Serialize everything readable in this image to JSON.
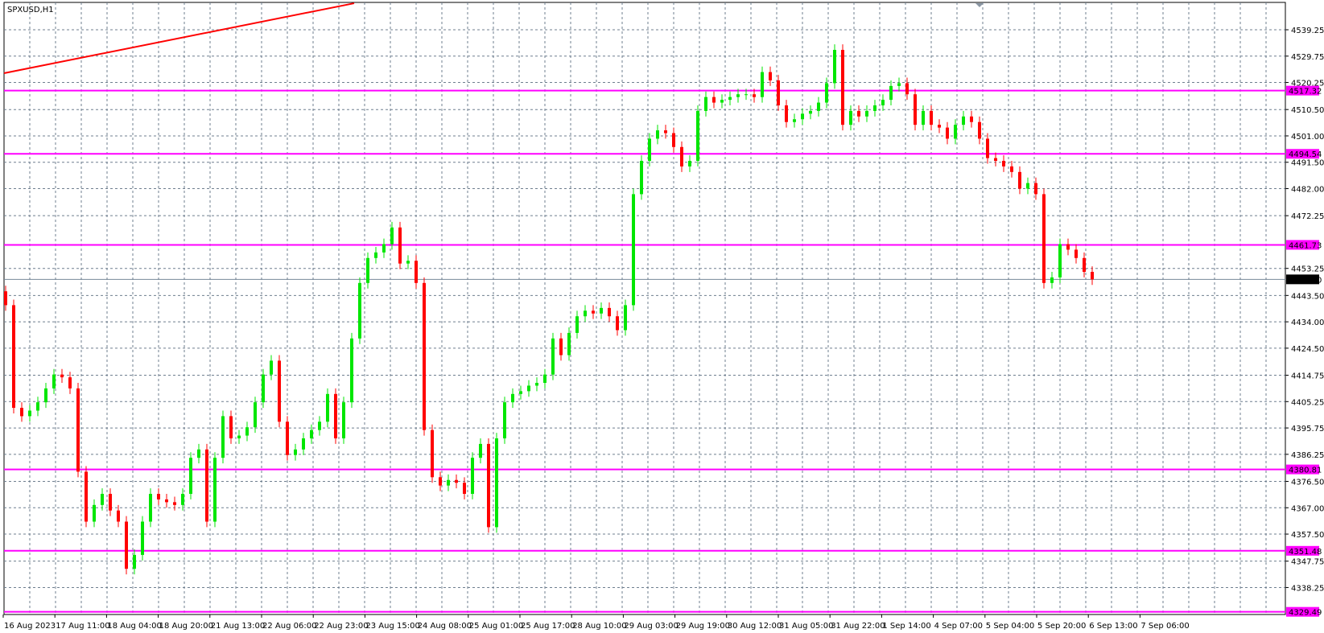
{
  "chart_title": "SPXUSD,H1",
  "chart_data": {
    "type": "candlestick",
    "symbol": "SPXUSD",
    "timeframe": "H1",
    "grid": true,
    "colors": {
      "bull": "#00e600",
      "bear": "#ff0000",
      "level_line": "#ff00ff",
      "trendline": "#ff0000",
      "price_line": "#778899",
      "grid": "#6f7f8f",
      "background": "#ffffff"
    },
    "y_ticks": [
      "4539.25",
      "4529.75",
      "4520.25",
      "4510.50",
      "4501.00",
      "4491.50",
      "4482.00",
      "4472.25",
      "4453.25",
      "4443.50",
      "4434.00",
      "4424.50",
      "4414.75",
      "4405.25",
      "4395.75",
      "4386.25",
      "4376.50",
      "4367.00",
      "4357.50",
      "4347.75",
      "4338.25"
    ],
    "x_ticks": [
      "16 Aug 2023",
      "17 Aug 11:00",
      "18 Aug 04:00",
      "18 Aug 20:00",
      "21 Aug 13:00",
      "22 Aug 06:00",
      "22 Aug 23:00",
      "23 Aug 15:00",
      "24 Aug 08:00",
      "25 Aug 01:00",
      "25 Aug 17:00",
      "28 Aug 10:00",
      "29 Aug 03:00",
      "29 Aug 19:00",
      "30 Aug 12:00",
      "31 Aug 05:00",
      "31 Aug 22:00",
      "1 Sep 14:00",
      "4 Sep 07:00",
      "5 Sep 04:00",
      "5 Sep 20:00",
      "6 Sep 13:00",
      "7 Sep 06:00"
    ],
    "levels": [
      "4517.32",
      "4494.54",
      "4461.73",
      "4380.81",
      "4351.48",
      "4329.49"
    ],
    "current_price": "4449.30",
    "trendline": {
      "start_price": 4523.6,
      "end_price": 4548.8
    },
    "first_open": 4445,
    "close": [
      4440,
      4403,
      4400,
      4402,
      4405,
      4410,
      4415,
      4414,
      4410,
      4380,
      4362,
      4368,
      4372,
      4366,
      4362,
      4345,
      4350,
      4362,
      4372,
      4370,
      4369,
      4368,
      4372,
      4385,
      4388,
      4362,
      4385,
      4400,
      4392,
      4393,
      4396,
      4405,
      4415,
      4420,
      4398,
      4386,
      4388,
      4392,
      4395,
      4398,
      4408,
      4392,
      4405,
      4428,
      4448,
      4457,
      4459,
      4462,
      4468,
      4455,
      4456,
      4448,
      4395,
      4378,
      4375,
      4377,
      4376,
      4372,
      4385,
      4390,
      4360,
      4392,
      4405,
      4408,
      4409,
      4411,
      4412,
      4415,
      4428,
      4422,
      4430,
      4436,
      4438,
      4437,
      4439,
      4436,
      4431,
      4440,
      4480,
      4492,
      4500,
      4503,
      4502,
      4497,
      4490,
      4492,
      4510,
      4515,
      4513,
      4514,
      4515,
      4516,
      4516,
      4515,
      4524,
      4521,
      4512,
      4506,
      4507,
      4509,
      4510,
      4513,
      4520,
      4532,
      4505,
      4510,
      4508,
      4510,
      4512,
      4514,
      4519,
      4520,
      4516,
      4505,
      4510,
      4505,
      4504,
      4500,
      4505,
      4508,
      4506,
      4500,
      4493,
      4492,
      4490,
      4488,
      4482,
      4484,
      4480,
      4448,
      4450,
      4462,
      4460,
      4457,
      4452,
      4449.3
    ]
  }
}
